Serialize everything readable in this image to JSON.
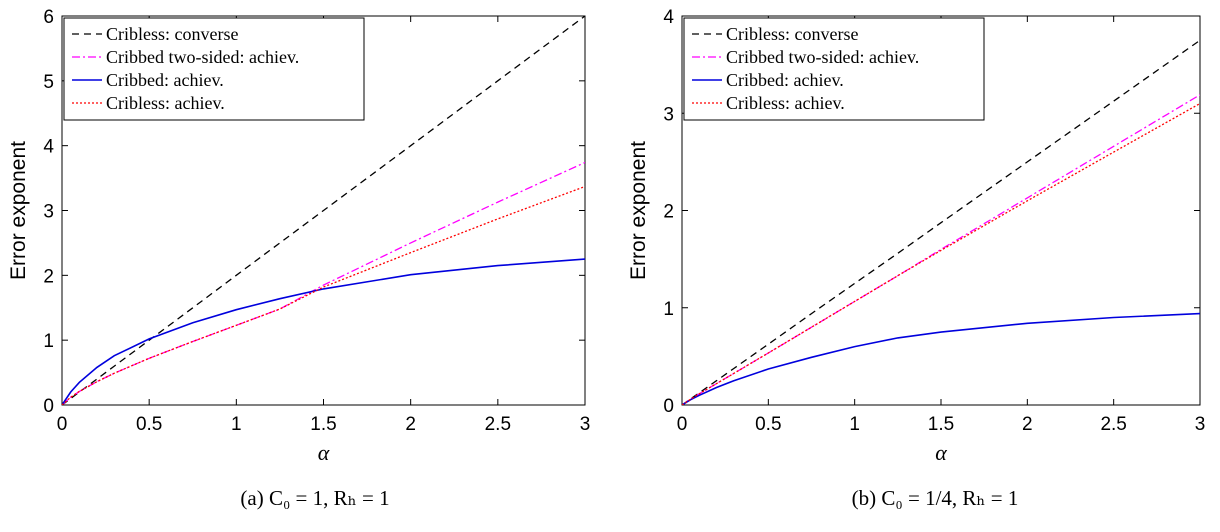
{
  "chart_data": [
    {
      "type": "line",
      "caption": "(a) C₀ = 1, Rₕ = 1",
      "xlabel": "α",
      "ylabel": "Error exponent",
      "xlim": [
        0,
        3
      ],
      "ylim": [
        0,
        6
      ],
      "xticks": [
        "0",
        "0.5",
        "1",
        "1.5",
        "2",
        "2.5",
        "3"
      ],
      "yticks": [
        "0",
        "1",
        "2",
        "3",
        "4",
        "5",
        "6"
      ],
      "grid": false,
      "legend_position": "top-left",
      "x": [
        0,
        0.05,
        0.1,
        0.2,
        0.3,
        0.5,
        0.75,
        1.0,
        1.25,
        1.5,
        2.0,
        2.5,
        3.0
      ],
      "series": [
        {
          "name": "Cribless: converse",
          "color": "#000000",
          "dash": "dashed",
          "values": [
            0,
            0.1,
            0.2,
            0.4,
            0.6,
            1.0,
            1.5,
            2.0,
            2.5,
            3.0,
            4.0,
            5.0,
            6.0
          ]
        },
        {
          "name": "Cribbed two-sided: achiev.",
          "color": "#ff00ff",
          "dash": "dashdot",
          "values": [
            0,
            0.12,
            0.21,
            0.36,
            0.49,
            0.72,
            0.98,
            1.23,
            1.48,
            1.85,
            2.5,
            3.13,
            3.74
          ]
        },
        {
          "name": "Cribbed: achiev.",
          "color": "#0000dd",
          "dash": "solid",
          "values": [
            0,
            0.2,
            0.35,
            0.58,
            0.76,
            1.02,
            1.27,
            1.47,
            1.64,
            1.79,
            2.01,
            2.15,
            2.25
          ]
        },
        {
          "name": "Cribless: achiev.",
          "color": "#ff0000",
          "dash": "dotted",
          "values": [
            0,
            0.12,
            0.21,
            0.36,
            0.49,
            0.72,
            0.98,
            1.23,
            1.48,
            1.82,
            2.35,
            2.87,
            3.37
          ]
        }
      ]
    },
    {
      "type": "line",
      "caption": "(b) C₀ = 1/4, Rₕ = 1",
      "xlabel": "α",
      "ylabel": "Error exponent",
      "xlim": [
        0,
        3
      ],
      "ylim": [
        0,
        4
      ],
      "xticks": [
        "0",
        "0.5",
        "1",
        "1.5",
        "2",
        "2.5",
        "3"
      ],
      "yticks": [
        "0",
        "1",
        "2",
        "3",
        "4"
      ],
      "grid": false,
      "legend_position": "top-left",
      "x": [
        0,
        0.05,
        0.1,
        0.2,
        0.3,
        0.5,
        0.75,
        1.0,
        1.25,
        1.5,
        2.0,
        2.5,
        3.0
      ],
      "series": [
        {
          "name": "Cribless: converse",
          "color": "#000000",
          "dash": "dashed",
          "values": [
            0,
            0.0625,
            0.125,
            0.25,
            0.375,
            0.625,
            0.94,
            1.25,
            1.56,
            1.875,
            2.5,
            3.125,
            3.75
          ]
        },
        {
          "name": "Cribbed two-sided: achiev.",
          "color": "#ff00ff",
          "dash": "dashdot",
          "values": [
            0,
            0.06,
            0.115,
            0.22,
            0.325,
            0.535,
            0.8,
            1.065,
            1.33,
            1.6,
            2.13,
            2.66,
            3.19
          ]
        },
        {
          "name": "Cribbed: achiev.",
          "color": "#0000dd",
          "dash": "solid",
          "values": [
            0,
            0.055,
            0.1,
            0.18,
            0.25,
            0.37,
            0.49,
            0.6,
            0.69,
            0.75,
            0.84,
            0.9,
            0.94
          ]
        },
        {
          "name": "Cribless: achiev.",
          "color": "#ff0000",
          "dash": "dotted",
          "values": [
            0,
            0.06,
            0.115,
            0.22,
            0.325,
            0.535,
            0.8,
            1.065,
            1.33,
            1.59,
            2.1,
            2.6,
            3.1
          ]
        }
      ]
    }
  ]
}
